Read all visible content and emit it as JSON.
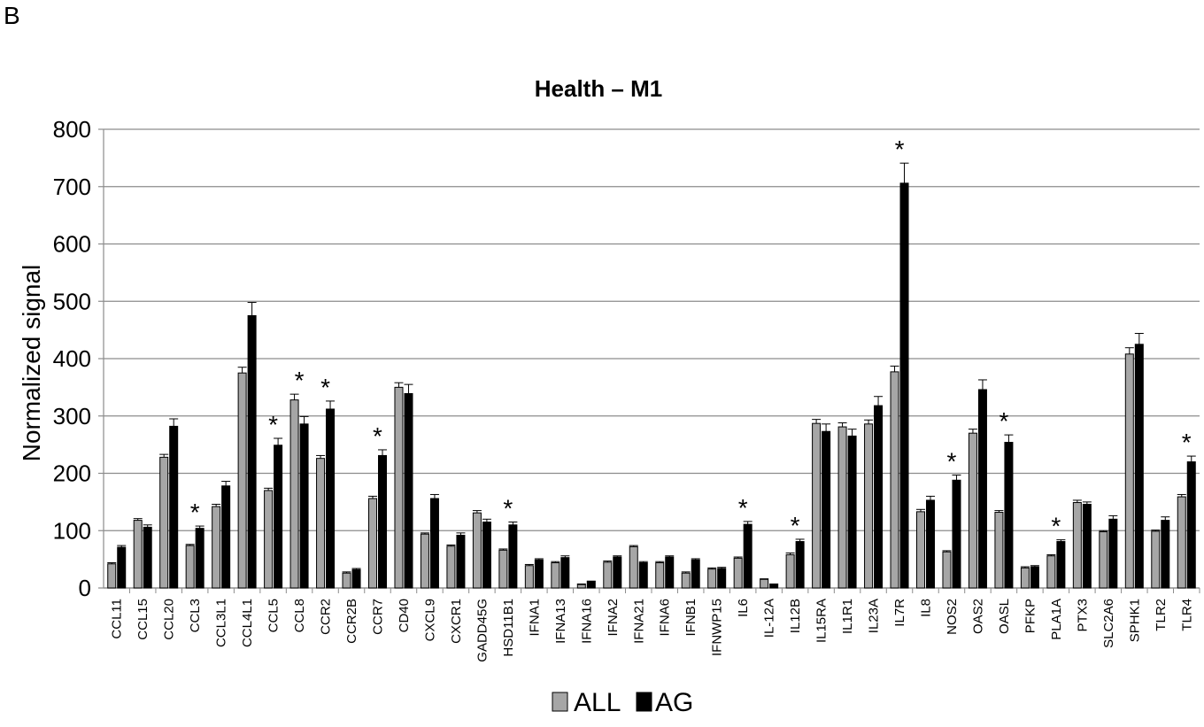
{
  "panel_label": "B",
  "chart_data": {
    "type": "bar",
    "title": "Health – M1",
    "xlabel": "",
    "ylabel": "Normalized signal",
    "ylim": [
      0,
      800
    ],
    "yticks": [
      0,
      100,
      200,
      300,
      400,
      500,
      600,
      700,
      800
    ],
    "grid": true,
    "legend_placement": "bottom",
    "significance_marker": "*",
    "categories": [
      "CCL11",
      "CCL15",
      "CCL20",
      "CCL3",
      "CCL3L1",
      "CCL4L1",
      "CCL5",
      "CCL8",
      "CCR2",
      "CCR2B",
      "CCR7",
      "CD40",
      "CXCL9",
      "CXCR1",
      "GADD45G",
      "HSD11B1",
      "IFNA1",
      "IFNA13",
      "IFNA16",
      "IFNA2",
      "IFNA21",
      "IFNA6",
      "IFNB1",
      "IFNWP15",
      "IL6",
      "IL-12A",
      "IL12B",
      "IL15RA",
      "IL1R1",
      "IL23A",
      "IL7R",
      "IL8",
      "NOS2",
      "OAS2",
      "OASL",
      "PFKP",
      "PLA1A",
      "PTX3",
      "SLC2A6",
      "SPHK1",
      "TLR2",
      "TLR4"
    ],
    "series": [
      {
        "name": "ALL",
        "color": "#a6a6a6",
        "values": [
          42,
          118,
          228,
          74,
          142,
          375,
          170,
          328,
          226,
          26,
          156,
          350,
          94,
          73,
          131,
          66,
          39,
          44,
          6,
          45,
          72,
          44,
          26,
          33,
          52,
          15,
          58,
          287,
          281,
          286,
          377,
          133,
          63,
          270,
          132,
          35,
          56,
          149,
          98,
          408,
          99,
          159
        ],
        "errors": [
          2,
          3,
          5,
          2,
          4,
          10,
          4,
          10,
          5,
          2,
          4,
          8,
          2,
          2,
          4,
          2,
          2,
          2,
          1,
          2,
          2,
          2,
          2,
          2,
          2,
          1,
          3,
          7,
          7,
          7,
          10,
          4,
          2,
          7,
          3,
          2,
          2,
          4,
          2,
          11,
          2,
          4
        ]
      },
      {
        "name": "AG",
        "color": "#000000",
        "values": [
          71,
          106,
          282,
          104,
          178,
          475,
          249,
          286,
          312,
          32,
          231,
          339,
          156,
          92,
          115,
          110,
          49,
          53,
          11,
          54,
          44,
          54,
          49,
          34,
          111,
          6,
          81,
          273,
          265,
          318,
          706,
          153,
          188,
          346,
          254,
          37,
          81,
          146,
          120,
          425,
          118,
          220
        ],
        "errors": [
          3,
          4,
          13,
          4,
          8,
          23,
          12,
          13,
          14,
          2,
          10,
          16,
          7,
          4,
          5,
          5,
          2,
          3,
          1,
          2,
          2,
          2,
          2,
          2,
          5,
          1,
          4,
          13,
          12,
          16,
          35,
          7,
          9,
          17,
          13,
          2,
          3,
          4,
          6,
          19,
          6,
          10
        ]
      }
    ],
    "significant": [
      "CCL3",
      "CCL5",
      "CCL8",
      "CCR2",
      "CCR7",
      "HSD11B1",
      "IL6",
      "IL12B",
      "IL7R",
      "NOS2",
      "OASL",
      "PLA1A",
      "TLR4"
    ]
  }
}
